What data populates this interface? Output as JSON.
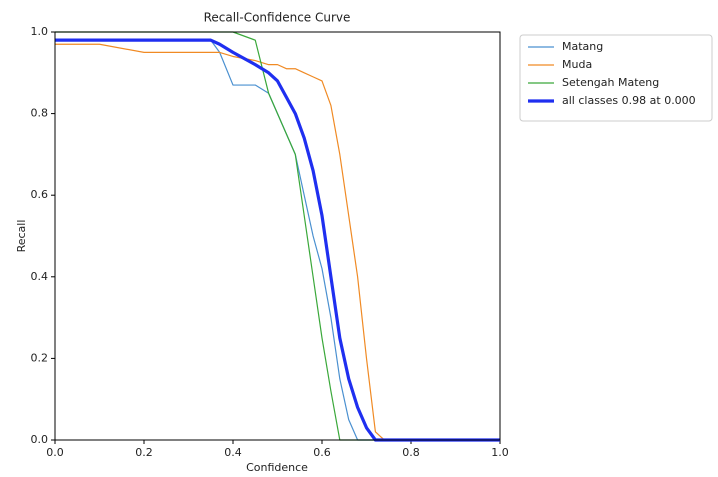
{
  "chart_data": {
    "type": "line",
    "title": "Recall-Confidence Curve",
    "x_label": "Confidence",
    "y_label": "Recall",
    "x": [
      0,
      0.1,
      0.2,
      0.3,
      0.35,
      0.37,
      0.4,
      0.45,
      0.48,
      0.5,
      0.52,
      0.54,
      0.56,
      0.58,
      0.6,
      0.62,
      0.64,
      0.66,
      0.68,
      0.7,
      0.72,
      0.74,
      0.8,
      0.9,
      1.0
    ],
    "series": [
      {
        "name": "Matang",
        "color": "#4a90d0",
        "width": 1.2,
        "values": [
          0.98,
          0.98,
          0.98,
          0.98,
          0.98,
          0.95,
          0.87,
          0.87,
          0.85,
          0.8,
          0.75,
          0.7,
          0.6,
          0.5,
          0.42,
          0.3,
          0.15,
          0.05,
          0,
          0,
          0,
          0,
          0,
          0,
          0
        ]
      },
      {
        "name": "Muda",
        "color": "#f08a24",
        "width": 1.2,
        "values": [
          0.97,
          0.97,
          0.95,
          0.95,
          0.95,
          0.95,
          0.94,
          0.93,
          0.92,
          0.92,
          0.91,
          0.91,
          0.9,
          0.89,
          0.88,
          0.82,
          0.7,
          0.55,
          0.4,
          0.2,
          0.02,
          0,
          0,
          0,
          0
        ]
      },
      {
        "name": "Setengah Mateng",
        "color": "#3aa83a",
        "width": 1.2,
        "values": [
          1,
          1,
          1,
          1,
          1,
          1,
          1,
          0.98,
          0.85,
          0.8,
          0.75,
          0.7,
          0.55,
          0.4,
          0.25,
          0.12,
          0,
          0,
          0,
          0,
          0,
          0,
          0,
          0,
          0
        ]
      },
      {
        "name": "all classes 0.98 at 0.000",
        "color": "#1f2ff0",
        "width": 3.2,
        "values": [
          0.98,
          0.98,
          0.98,
          0.98,
          0.98,
          0.97,
          0.95,
          0.92,
          0.9,
          0.88,
          0.84,
          0.8,
          0.74,
          0.66,
          0.55,
          0.4,
          0.25,
          0.15,
          0.08,
          0.03,
          0,
          0,
          0,
          0,
          0
        ]
      }
    ],
    "xlim": [
      0,
      1
    ],
    "ylim": [
      0,
      1
    ],
    "xticks": [
      {
        "value": 0,
        "label": "0.0"
      },
      0.2,
      0.4,
      0.6,
      0.8,
      {
        "value": 1,
        "label": "1.0"
      }
    ],
    "yticks": [
      {
        "value": 0,
        "label": "0.0"
      },
      0.2,
      0.4,
      0.6,
      0.8,
      {
        "value": 1,
        "label": "1.0"
      }
    ],
    "grid": false,
    "legend": "outside-upper-right"
  }
}
